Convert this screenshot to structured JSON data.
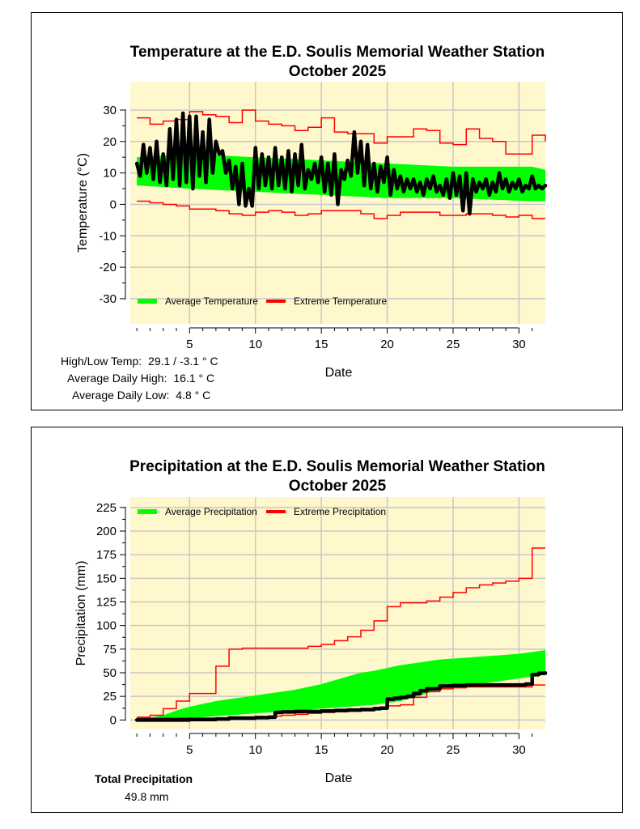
{
  "chart_data": [
    {
      "type": "line",
      "title": "Temperature at the E.D. Soulis Memorial Weather Station",
      "subtitle": "October 2025",
      "xlabel": "Date",
      "ylabel": "Temperature (°C)",
      "xlim": [
        0.5,
        32
      ],
      "ylim": [
        -38,
        39
      ],
      "xticks": [
        5,
        10,
        15,
        20,
        25,
        30
      ],
      "yticks": [
        -30,
        -20,
        -10,
        0,
        10,
        20,
        30
      ],
      "legend": {
        "placement": "bottom-left",
        "entries": [
          "Average Temperature",
          "Extreme Temperature"
        ]
      },
      "colors": {
        "average": "#00ff00",
        "extreme": "#ff0000",
        "observed": "#000000",
        "plot_bg": "#fff8cc",
        "grid": "#c8c8c8"
      },
      "series": [
        {
          "name": "Average Temperature",
          "kind": "band",
          "x": [
            1,
            5,
            10,
            15,
            20,
            25,
            31,
            32
          ],
          "low": [
            6,
            5,
            4,
            3,
            2,
            2,
            1,
            1
          ],
          "high": [
            15,
            16,
            15,
            14,
            13,
            12,
            12,
            11
          ]
        },
        {
          "name": "Extreme High",
          "kind": "step",
          "x": [
            1,
            2,
            3,
            4,
            5,
            6,
            7,
            8,
            9,
            10,
            11,
            12,
            13,
            14,
            15,
            16,
            17,
            18,
            19,
            20,
            21,
            22,
            23,
            24,
            25,
            26,
            27,
            28,
            29,
            30,
            31,
            32
          ],
          "values": [
            27.5,
            25.5,
            26.5,
            27,
            29.5,
            28.5,
            28,
            26,
            30,
            26.5,
            25.5,
            25,
            23.5,
            24.5,
            27.5,
            23,
            22.5,
            22.5,
            19.5,
            21.5,
            21.5,
            24,
            23.5,
            19.5,
            19,
            24,
            21,
            20,
            16,
            16,
            22,
            20
          ]
        },
        {
          "name": "Extreme Low",
          "kind": "step",
          "x": [
            1,
            2,
            3,
            4,
            5,
            6,
            7,
            8,
            9,
            10,
            11,
            12,
            13,
            14,
            15,
            16,
            17,
            18,
            19,
            20,
            21,
            22,
            23,
            24,
            25,
            26,
            27,
            28,
            29,
            30,
            31,
            32
          ],
          "values": [
            1,
            0.5,
            0,
            -0.5,
            -1.5,
            -1.5,
            -2,
            -3,
            -3.5,
            -2.5,
            -2,
            -2.5,
            -3.5,
            -3,
            -2,
            -2,
            -2,
            -3,
            -4.5,
            -3.5,
            -2.5,
            -2.5,
            -2.5,
            -3.5,
            -3.5,
            -3,
            -3,
            -3.5,
            -4,
            -3.5,
            -4.5,
            -4.5
          ]
        },
        {
          "name": "Observed Temperature",
          "kind": "line",
          "x": [
            1,
            1.25,
            1.5,
            1.75,
            2,
            2.25,
            2.5,
            2.75,
            3,
            3.25,
            3.5,
            3.75,
            4,
            4.25,
            4.5,
            4.75,
            5,
            5.25,
            5.5,
            5.75,
            6,
            6.25,
            6.5,
            6.75,
            7,
            7.25,
            7.5,
            7.75,
            8,
            8.25,
            8.5,
            8.75,
            9,
            9.25,
            9.5,
            9.75,
            10,
            10.25,
            10.5,
            10.75,
            11,
            11.25,
            11.5,
            11.75,
            12,
            12.25,
            12.5,
            12.75,
            13,
            13.25,
            13.5,
            13.75,
            14,
            14.25,
            14.5,
            14.75,
            15,
            15.25,
            15.5,
            15.75,
            16,
            16.25,
            16.5,
            16.75,
            17,
            17.25,
            17.5,
            17.75,
            18,
            18.25,
            18.5,
            18.75,
            19,
            19.25,
            19.5,
            19.75,
            20,
            20.25,
            20.5,
            20.75,
            21,
            21.25,
            21.5,
            21.75,
            22,
            22.25,
            22.5,
            22.75,
            23,
            23.25,
            23.5,
            23.75,
            24,
            24.25,
            24.5,
            24.75,
            25,
            25.25,
            25.5,
            25.75,
            26,
            26.25,
            26.5,
            26.75,
            27,
            27.25,
            27.5,
            27.75,
            28,
            28.25,
            28.5,
            28.75,
            29,
            29.25,
            29.5,
            29.75,
            30,
            30.25,
            30.5,
            30.75,
            31,
            31.25,
            31.5,
            31.75,
            32
          ],
          "values": [
            13,
            9,
            19,
            10,
            18,
            8,
            20,
            7,
            16,
            6,
            24,
            8,
            27,
            6,
            29,
            7,
            28,
            5,
            28,
            9,
            23,
            7,
            27,
            10,
            20,
            16,
            17,
            10,
            14,
            5,
            12,
            0,
            13,
            -0.5,
            5,
            -0.5,
            18,
            5,
            16,
            6,
            15,
            5,
            18,
            6,
            15,
            5,
            17,
            4,
            16,
            6,
            19,
            5,
            11,
            8,
            13,
            7,
            15,
            4,
            13,
            3,
            16,
            0,
            11,
            8,
            14,
            9,
            23,
            10,
            20,
            6,
            19,
            5,
            13,
            4,
            12,
            7,
            15,
            3,
            11,
            5,
            9,
            4,
            8,
            5,
            8,
            4,
            7,
            3,
            8,
            5,
            9,
            4,
            6,
            3,
            8,
            2,
            10,
            3,
            9,
            -2,
            10,
            -3,
            8,
            4,
            7,
            5,
            8,
            3,
            7,
            4,
            10,
            5,
            8,
            4,
            7,
            5,
            8,
            4,
            6,
            5,
            9,
            5,
            6,
            5,
            6
          ]
        }
      ],
      "stats": [
        {
          "label": "High/Low Temp:",
          "value": "29.1 / -3.1 ° C"
        },
        {
          "label": "Average Daily High:",
          "value": "16.1 ° C"
        },
        {
          "label": "Average Daily Low:",
          "value": "4.8 ° C"
        }
      ]
    },
    {
      "type": "area",
      "title": "Precipitation at the E.D. Soulis Memorial Weather Station",
      "subtitle": "October 2025",
      "xlabel": "Date",
      "ylabel": "Precipitation (mm)",
      "xlim": [
        0.5,
        32
      ],
      "ylim": [
        -10,
        236
      ],
      "xticks": [
        5,
        10,
        15,
        20,
        25,
        30
      ],
      "yticks": [
        0,
        25,
        50,
        75,
        100,
        125,
        150,
        175,
        200,
        225
      ],
      "legend": {
        "placement": "top-left",
        "entries": [
          "Average Precipitation",
          "Extreme Precipitation"
        ]
      },
      "colors": {
        "average": "#00ff00",
        "extreme": "#ff0000",
        "observed": "#000000",
        "plot_bg": "#fff8cc",
        "grid": "#c8c8c8"
      },
      "series": [
        {
          "name": "Average Precipitation",
          "kind": "band",
          "x": [
            1,
            3,
            4,
            5,
            6,
            7,
            8,
            9,
            10,
            11,
            12,
            13,
            14,
            15,
            16,
            17,
            18,
            19,
            20,
            21,
            22,
            23,
            24,
            25,
            26,
            27,
            28,
            29,
            30,
            31,
            32
          ],
          "low": [
            0,
            0,
            1,
            2,
            3,
            4,
            5,
            6,
            7,
            8,
            9,
            10,
            11,
            12,
            13,
            14,
            15,
            16,
            18,
            20,
            24,
            28,
            32,
            34,
            36,
            38,
            40,
            42,
            44,
            46,
            48
          ],
          "high": [
            0,
            5,
            10,
            14,
            17,
            20,
            22,
            24,
            26,
            28,
            30,
            32,
            35,
            38,
            42,
            46,
            50,
            52,
            55,
            58,
            60,
            62,
            64,
            65,
            66,
            67,
            68,
            69,
            70,
            72,
            74
          ]
        },
        {
          "name": "Extreme High",
          "kind": "step",
          "x": [
            1,
            2,
            3,
            4,
            5,
            6,
            7,
            8,
            9,
            10,
            11,
            12,
            13,
            14,
            15,
            16,
            17,
            18,
            19,
            20,
            21,
            22,
            23,
            24,
            25,
            26,
            27,
            28,
            29,
            30,
            31,
            32
          ],
          "values": [
            3,
            5,
            12,
            20,
            28,
            28,
            57,
            75,
            76,
            76,
            76,
            76,
            76,
            78,
            80,
            84,
            88,
            95,
            105,
            120,
            124,
            124,
            126,
            130,
            135,
            140,
            143,
            145,
            147,
            150,
            182,
            182
          ]
        },
        {
          "name": "Extreme Low",
          "kind": "step",
          "x": [
            1,
            2,
            3,
            4,
            5,
            6,
            7,
            8,
            9,
            10,
            11,
            12,
            13,
            14,
            15,
            16,
            17,
            18,
            19,
            20,
            21,
            22,
            23,
            24,
            25,
            26,
            27,
            28,
            29,
            30,
            31,
            32
          ],
          "values": [
            2,
            2,
            2,
            2,
            2,
            2,
            2,
            2,
            2,
            3,
            4,
            5,
            6,
            7,
            8,
            9,
            10,
            11,
            13,
            15,
            16,
            24,
            30,
            33,
            34,
            35,
            35,
            35,
            35,
            35,
            37,
            37
          ]
        },
        {
          "name": "Observed Precipitation",
          "kind": "step",
          "x": [
            1,
            5,
            7,
            8,
            9,
            10,
            11,
            11.5,
            12,
            13,
            14,
            15,
            16,
            17,
            18,
            19,
            19.5,
            20,
            20.5,
            21,
            21.5,
            22,
            22.5,
            23,
            24,
            25,
            26,
            27,
            28,
            29,
            30,
            30.5,
            31,
            31.5,
            32
          ],
          "values": [
            0,
            0.5,
            1,
            2,
            2,
            2.5,
            3,
            8,
            8.5,
            9,
            9,
            9.5,
            10,
            10.5,
            11,
            12,
            12.5,
            22,
            23,
            24,
            25,
            28,
            31,
            33,
            36,
            36.5,
            37,
            37,
            37,
            37,
            37,
            38,
            48,
            49.5,
            49.8
          ]
        }
      ],
      "stats": [
        {
          "label": "Total Precipitation",
          "value": "49.8 mm"
        }
      ]
    }
  ]
}
